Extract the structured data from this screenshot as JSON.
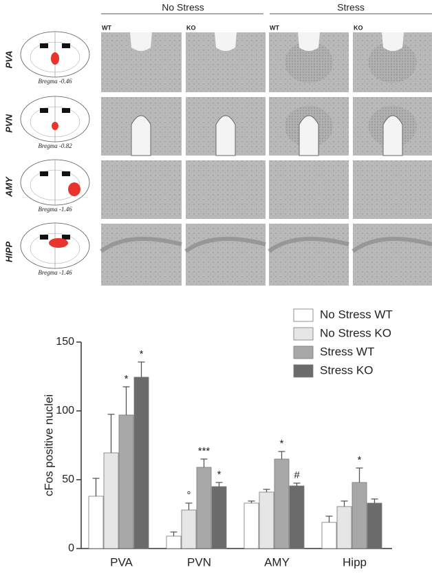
{
  "figure": {
    "column_groups": [
      "No Stress",
      "Stress"
    ],
    "genotypes": [
      "WT",
      "KO",
      "WT",
      "KO"
    ],
    "rows": [
      {
        "region": "PVA",
        "bregma": "Bregma -0.46"
      },
      {
        "region": "PVN",
        "bregma": "Bregma -0.82"
      },
      {
        "region": "AMY",
        "bregma": "Bregma -1.46"
      },
      {
        "region": "HIPP",
        "bregma": "Bregma -1.46"
      }
    ]
  },
  "chart_data": {
    "type": "bar",
    "y_label": "cFos positive nuclei",
    "categories": [
      "PVA",
      "PVN",
      "AMY",
      "Hipp"
    ],
    "ylim": [
      0,
      150
    ],
    "yticks": [
      0,
      50,
      100,
      150
    ],
    "series": [
      {
        "name": "No Stress WT",
        "color": "#ffffff",
        "values": [
          38,
          9,
          33,
          19
        ],
        "errors": [
          13,
          3,
          1.5,
          4.5
        ],
        "significance": [
          null,
          null,
          null,
          null
        ]
      },
      {
        "name": "No Stress KO",
        "color": "#e6e6e6",
        "values": [
          69.5,
          28,
          41,
          30.5
        ],
        "errors": [
          28,
          5,
          2,
          4
        ],
        "significance": [
          null,
          "°",
          null,
          null
        ]
      },
      {
        "name": "Stress WT",
        "color": "#a8a8a8",
        "values": [
          97,
          59,
          65,
          48
        ],
        "errors": [
          20.5,
          6,
          5.5,
          10.5
        ],
        "significance": [
          "*",
          "***",
          "*",
          "*"
        ]
      },
      {
        "name": "Stress KO",
        "color": "#6b6b6b",
        "values": [
          124.5,
          45,
          45.5,
          33
        ],
        "errors": [
          11,
          3,
          2,
          3
        ],
        "significance": [
          "*",
          "*",
          "#",
          null
        ]
      }
    ]
  }
}
